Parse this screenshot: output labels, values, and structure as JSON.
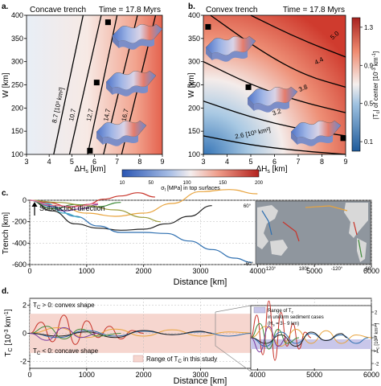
{
  "panels": {
    "a": {
      "letter": "a.",
      "title": "Concave trench",
      "time": "Time = 17.8 Myrs",
      "ylabel": "W [km]",
      "xlabel": "ΔH",
      "xlabel_sub": "s",
      "xlabel_unit": " [km]"
    },
    "b": {
      "letter": "b.",
      "title": "Convex trench",
      "time": "Time = 17.8 Myrs",
      "ylabel": "W [km]",
      "xlabel": "ΔH",
      "xlabel_sub": "s",
      "xlabel_unit": " [km]",
      "colorbar_label": "|T",
      "colorbar_label_sub": "c",
      "colorbar_label_rest": "| of center [10",
      "colorbar_label_sup": "-3",
      "colorbar_label_end": " km",
      "colorbar_label_sup2": "-1",
      "colorbar_label_close": "]"
    },
    "stress_colorbar": {
      "label": "σ",
      "label_sub": "t",
      "label_rest": " [MPa] in top surfaces",
      "ticks": [
        "10",
        "50",
        "100",
        "150",
        "200"
      ]
    },
    "c": {
      "letter": "c.",
      "ylabel": "Trench [km]",
      "xlabel": "Distance [km]",
      "annotation": "Subduction direction",
      "map_lat_labels": [
        "60°",
        "-60°"
      ],
      "map_lon_labels": [
        "120°",
        "180°",
        "-120°",
        "-60°"
      ]
    },
    "d": {
      "letter": "d.",
      "ylabel": "T",
      "ylabel_sub": "C",
      "ylabel_rest": " [10",
      "ylabel_sup": "-3",
      "ylabel_end": " km",
      "ylabel_sup2": "-1",
      "ylabel_close": "]",
      "xlabel": "Distance [km]",
      "convex_note": "T",
      "convex_note_sub": "C",
      "convex_note_rest": " > 0: convex shape",
      "concave_note": "T",
      "concave_note_sub": "C",
      "concave_note_rest": " < 0: concave shape",
      "range_label": "Range of T",
      "range_label_sub": "C",
      "range_label_rest": " in this study",
      "inset_legend_1": "Range of T",
      "inset_legend_1_sub": "c",
      "inset_legend_2": "in uniform sediment cases",
      "inset_legend_3": "(H",
      "inset_legend_3_sub": "s",
      "inset_legend_3_rest": " = 3 - 9 km)",
      "inset_ylabel": "T",
      "inset_ylabel_sub": "C",
      "inset_ylabel_rest": " [10",
      "inset_ylabel_sup": "-3",
      "inset_ylabel_end": " km",
      "inset_ylabel_sup2": "-1",
      "inset_ylabel_close": "]"
    }
  },
  "colors": {
    "red": "#c8342a",
    "blue": "#2e6fb0",
    "pink_range": "#f6d6cf",
    "lavender_range": "#c9c7ea"
  },
  "chart_data": [
    {
      "panel": "a",
      "type": "heatmap",
      "title": "Concave trench",
      "xlabel": "ΔHs [km]",
      "ylabel": "W [km]",
      "xlim": [
        3,
        9
      ],
      "ylim": [
        100,
        400
      ],
      "x_ticks": [
        3,
        4,
        5,
        6,
        7,
        8,
        9
      ],
      "y_ticks": [
        100,
        150,
        200,
        250,
        300,
        350,
        400
      ],
      "contours": [
        {
          "label": "8.7 [10³ km²]",
          "points": [
            [
              4.2,
              100
            ],
            [
              5.5,
              400
            ]
          ]
        },
        {
          "label": "10.7",
          "points": [
            [
              4.9,
              100
            ],
            [
              6.3,
              400
            ]
          ]
        },
        {
          "label": "12.7",
          "points": [
            [
              5.7,
              100
            ],
            [
              7.0,
              400
            ]
          ]
        },
        {
          "label": "14.7",
          "points": [
            [
              6.4,
              100
            ],
            [
              7.9,
              400
            ]
          ]
        },
        {
          "label": "16.7",
          "points": [
            [
              7.2,
              100
            ],
            [
              8.7,
              400
            ]
          ]
        }
      ],
      "markers": [
        [
          5.8,
          108
        ],
        [
          6.1,
          255
        ],
        [
          6.6,
          385
        ]
      ]
    },
    {
      "panel": "b",
      "type": "heatmap",
      "title": "Convex trench",
      "xlabel": "ΔHs [km]",
      "ylabel": "W [km]",
      "xlim": [
        3,
        9
      ],
      "ylim": [
        100,
        400
      ],
      "x_ticks": [
        3,
        4,
        5,
        6,
        7,
        8,
        9
      ],
      "y_ticks": [
        100,
        150,
        200,
        250,
        300,
        350,
        400
      ],
      "colorbar_ticks": [
        0.1,
        0.5,
        0.9,
        1.3
      ],
      "contours": [
        {
          "label": "2.6 [10³ km²]",
          "points": [
            [
              3.0,
              140
            ],
            [
              5.0,
              120
            ],
            [
              7.0,
              108
            ],
            [
              9.0,
              100
            ]
          ]
        },
        {
          "label": "3.2",
          "points": [
            [
              3.0,
              215
            ],
            [
              5.0,
              180
            ],
            [
              7.0,
              155
            ],
            [
              9.0,
              140
            ]
          ]
        },
        {
          "label": "3.8",
          "points": [
            [
              3.0,
              300
            ],
            [
              5.0,
              250
            ],
            [
              7.0,
              215
            ],
            [
              9.0,
              190
            ]
          ]
        },
        {
          "label": "4.4",
          "points": [
            [
              3.3,
              400
            ],
            [
              5.5,
              320
            ],
            [
              7.3,
              270
            ],
            [
              9.0,
              245
            ]
          ]
        },
        {
          "label": "5.0",
          "points": [
            [
              5.0,
              400
            ],
            [
              7.0,
              350
            ],
            [
              9.0,
              310
            ]
          ]
        }
      ],
      "markers": [
        [
          3.2,
          375
        ],
        [
          4.9,
          245
        ],
        [
          8.9,
          135
        ]
      ]
    },
    {
      "panel": "c",
      "type": "line",
      "xlabel": "Distance [km]",
      "ylabel": "Trench [km]",
      "xlim": [
        0,
        6000
      ],
      "ylim": [
        -600,
        0
      ],
      "x_ticks": [
        0,
        1000,
        2000,
        3000,
        4000,
        5000,
        6000
      ],
      "y_ticks": [
        0,
        -200,
        -400,
        -600
      ],
      "series": [
        {
          "color": "#e8a33c",
          "x": [
            0,
            500,
            1000,
            1500,
            2000,
            2500,
            3000,
            3500,
            4000
          ],
          "y": [
            0,
            -50,
            -120,
            -150,
            -120,
            -30,
            80,
            100,
            60
          ]
        },
        {
          "color": "#222222",
          "x": [
            0,
            400,
            800,
            1200,
            1600,
            2000,
            2400,
            2800,
            3200
          ],
          "y": [
            0,
            -100,
            -220,
            -260,
            -280,
            -270,
            -220,
            -150,
            -50
          ]
        },
        {
          "color": "#2e6fb0",
          "x": [
            0,
            400,
            800,
            1200,
            1600,
            2000,
            2400,
            2800,
            3200,
            3600,
            3900
          ],
          "y": [
            0,
            -60,
            -150,
            -240,
            -300,
            -300,
            -310,
            -380,
            -460,
            -540,
            -580
          ]
        },
        {
          "color": "#c8342a",
          "x": [
            0,
            300,
            700,
            1000,
            1300,
            1600,
            1900,
            2200
          ],
          "y": [
            0,
            -20,
            -60,
            -40,
            10,
            40,
            70,
            30
          ]
        },
        {
          "color": "#7a3da0",
          "x": [
            0,
            300,
            600,
            900,
            1200
          ],
          "y": [
            0,
            -40,
            -100,
            -80,
            -40
          ]
        },
        {
          "color": "#3f8a3a",
          "x": [
            0,
            400,
            800,
            1200,
            1600
          ],
          "y": [
            0,
            -80,
            -40,
            -60,
            -20
          ]
        },
        {
          "color": "#45b0c8",
          "x": [
            0,
            300,
            600,
            900
          ],
          "y": [
            0,
            -30,
            -120,
            -160
          ]
        },
        {
          "color": "#9b9b3a",
          "x": [
            0,
            500,
            1000,
            1500,
            2000,
            2300
          ],
          "y": [
            0,
            -20,
            -50,
            -90,
            -160,
            -200
          ]
        },
        {
          "color": "#e36a9b",
          "x": [
            0,
            400,
            800,
            1200
          ],
          "y": [
            0,
            -50,
            -60,
            -30
          ]
        }
      ]
    },
    {
      "panel": "d",
      "type": "line",
      "xlabel": "Distance [km]",
      "ylabel": "TC [10⁻³ km⁻¹]",
      "xlim": [
        0,
        6000
      ],
      "ylim": [
        -2.5,
        2.5
      ],
      "x_ticks": [
        0,
        1000,
        2000,
        3000,
        4000,
        5000,
        6000
      ],
      "y_ticks": [
        -2,
        0,
        2
      ],
      "range_band": [
        -1.4,
        1.4
      ],
      "inset_y_ticks": [
        -2,
        -1,
        0,
        1,
        2
      ],
      "series": [
        {
          "color": "#c8342a",
          "x": [
            0,
            200,
            400,
            600,
            800,
            1000,
            1200,
            1400,
            1600,
            1800,
            2000
          ],
          "y": [
            0,
            0.8,
            -0.6,
            1.3,
            -0.8,
            0.9,
            -0.3,
            0.5,
            -0.4,
            0.2,
            0
          ]
        },
        {
          "color": "#e8a33c",
          "x": [
            0,
            500,
            1000,
            1500,
            2000,
            2500,
            3000,
            3500,
            4000
          ],
          "y": [
            0,
            0.4,
            -0.3,
            0.3,
            -0.2,
            0.25,
            -0.2,
            0.1,
            0
          ]
        },
        {
          "color": "#2e6fb0",
          "x": [
            0,
            500,
            1000,
            1500,
            2000,
            2500,
            3000,
            3500,
            3900
          ],
          "y": [
            0,
            -0.3,
            0.2,
            -0.2,
            0.15,
            -0.1,
            0.1,
            -0.2,
            0
          ]
        },
        {
          "color": "#222222",
          "x": [
            0,
            500,
            1000,
            1500,
            2000,
            2500,
            3000,
            3200
          ],
          "y": [
            0,
            -0.2,
            0.1,
            -0.3,
            0.2,
            -0.1,
            0.15,
            0
          ]
        },
        {
          "color": "#3f8a3a",
          "x": [
            0,
            300,
            600,
            900,
            1200,
            1600
          ],
          "y": [
            0,
            0.5,
            -0.4,
            0.3,
            -0.2,
            0
          ]
        },
        {
          "color": "#7a3da0",
          "x": [
            0,
            300,
            600,
            900,
            1200
          ],
          "y": [
            0,
            -0.5,
            0.4,
            -0.3,
            0
          ]
        }
      ]
    }
  ]
}
